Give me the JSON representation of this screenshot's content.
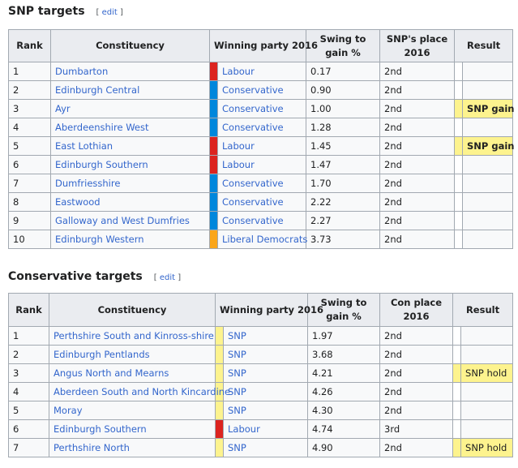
{
  "colors": {
    "Labour": "#dc241f",
    "Conservative": "#0087dc",
    "Liberal Democrats": "#faa61a",
    "SNP": "#fdf38e"
  },
  "snp": {
    "title": "SNP targets",
    "edit_label": "edit",
    "headers": {
      "rank": "Rank",
      "constituency": "Constituency",
      "party": "Winning party 2016",
      "swing": "Swing to gain %",
      "place": "SNP's place 2016",
      "result": "Result"
    },
    "rows": [
      {
        "rank": "1",
        "constituency": "Dumbarton",
        "party": "Labour",
        "swing": "0.17",
        "place": "2nd",
        "result": ""
      },
      {
        "rank": "2",
        "constituency": "Edinburgh Central",
        "party": "Conservative",
        "swing": "0.90",
        "place": "2nd",
        "result": ""
      },
      {
        "rank": "3",
        "constituency": "Ayr",
        "party": "Conservative",
        "swing": "1.00",
        "place": "2nd",
        "result": "SNP gain"
      },
      {
        "rank": "4",
        "constituency": "Aberdeenshire West",
        "party": "Conservative",
        "swing": "1.28",
        "place": "2nd",
        "result": ""
      },
      {
        "rank": "5",
        "constituency": "East Lothian",
        "party": "Labour",
        "swing": "1.45",
        "place": "2nd",
        "result": "SNP gain"
      },
      {
        "rank": "6",
        "constituency": "Edinburgh Southern",
        "party": "Labour",
        "swing": "1.47",
        "place": "2nd",
        "result": ""
      },
      {
        "rank": "7",
        "constituency": "Dumfriesshire",
        "party": "Conservative",
        "swing": "1.70",
        "place": "2nd",
        "result": ""
      },
      {
        "rank": "8",
        "constituency": "Eastwood",
        "party": "Conservative",
        "swing": "2.22",
        "place": "2nd",
        "result": ""
      },
      {
        "rank": "9",
        "constituency": "Galloway and West Dumfries",
        "party": "Conservative",
        "swing": "2.27",
        "place": "2nd",
        "result": ""
      },
      {
        "rank": "10",
        "constituency": "Edinburgh Western",
        "party": "Liberal Democrats",
        "swing": "3.73",
        "place": "2nd",
        "result": ""
      }
    ]
  },
  "con": {
    "title": "Conservative targets",
    "edit_label": "edit",
    "headers": {
      "rank": "Rank",
      "constituency": "Constituency",
      "party": "Winning party 2016",
      "swing": "Swing to gain %",
      "place": "Con place 2016",
      "result": "Result"
    },
    "rows": [
      {
        "rank": "1",
        "constituency": "Perthshire South and Kinross-shire",
        "party": "SNP",
        "swing": "1.97",
        "place": "2nd",
        "result": ""
      },
      {
        "rank": "2",
        "constituency": "Edinburgh Pentlands",
        "party": "SNP",
        "swing": "3.68",
        "place": "2nd",
        "result": ""
      },
      {
        "rank": "3",
        "constituency": "Angus North and Mearns",
        "party": "SNP",
        "swing": "4.21",
        "place": "2nd",
        "result": "SNP hold"
      },
      {
        "rank": "4",
        "constituency": "Aberdeen South and North Kincardine",
        "party": "SNP",
        "swing": "4.26",
        "place": "2nd",
        "result": ""
      },
      {
        "rank": "5",
        "constituency": "Moray",
        "party": "SNP",
        "swing": "4.30",
        "place": "2nd",
        "result": ""
      },
      {
        "rank": "6",
        "constituency": "Edinburgh Southern",
        "party": "Labour",
        "swing": "4.74",
        "place": "3rd",
        "result": ""
      },
      {
        "rank": "7",
        "constituency": "Perthshire North",
        "party": "SNP",
        "swing": "4.90",
        "place": "2nd",
        "result": "SNP hold"
      }
    ]
  }
}
